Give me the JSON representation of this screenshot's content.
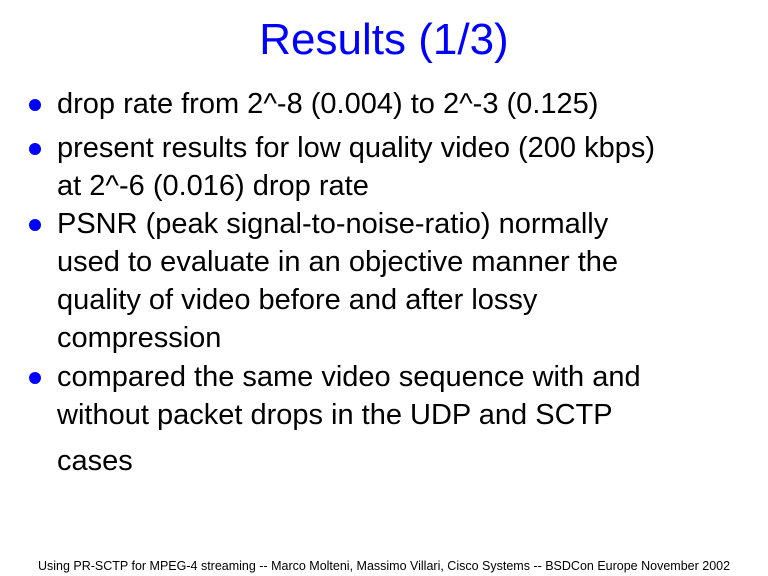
{
  "slide": {
    "title": "Results (1/3)",
    "bullet_color": "#0000ff",
    "bullets": [
      {
        "lines": [
          "drop rate from 2^-8 (0.004) to 2^-3 (0.125)"
        ]
      },
      {
        "lines": [
          "present results for low quality video (200 kbps)",
          "at 2^-6 (0.016) drop rate"
        ]
      },
      {
        "lines": [
          "PSNR (peak signal-to-noise-ratio) normally",
          "used to evaluate in an objective manner the",
          "quality of video before and after lossy",
          "compression"
        ]
      },
      {
        "lines": [
          "compared the same video sequence with and",
          "without packet drops in the UDP and SCTP",
          "cases"
        ]
      }
    ],
    "footer": "Using PR-SCTP for MPEG-4 streaming -- Marco Molteni, Massimo Villari, Cisco Systems -- BSDCon Europe November 2002"
  }
}
